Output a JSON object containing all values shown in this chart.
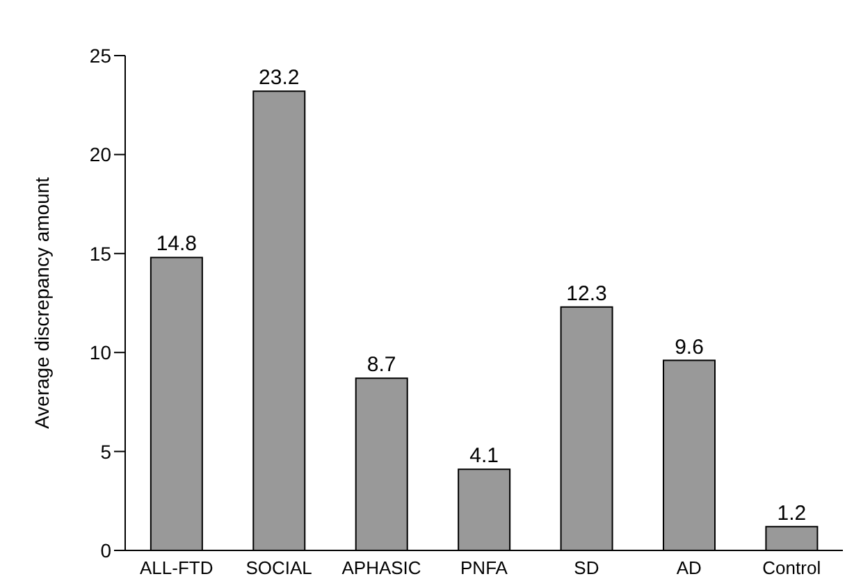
{
  "chart_data": {
    "type": "bar",
    "ylabel": "Average discrepancy amount",
    "categories": [
      "ALL-FTD",
      "SOCIAL",
      "APHASIC",
      "PNFA",
      "SD",
      "AD",
      "Control"
    ],
    "values": [
      14.8,
      23.2,
      8.7,
      4.1,
      12.3,
      9.6,
      1.2
    ],
    "color": "#999999",
    "ylim": [
      0,
      25
    ],
    "yticks": [
      0,
      5,
      10,
      15,
      20,
      25
    ],
    "data_labels": true
  }
}
